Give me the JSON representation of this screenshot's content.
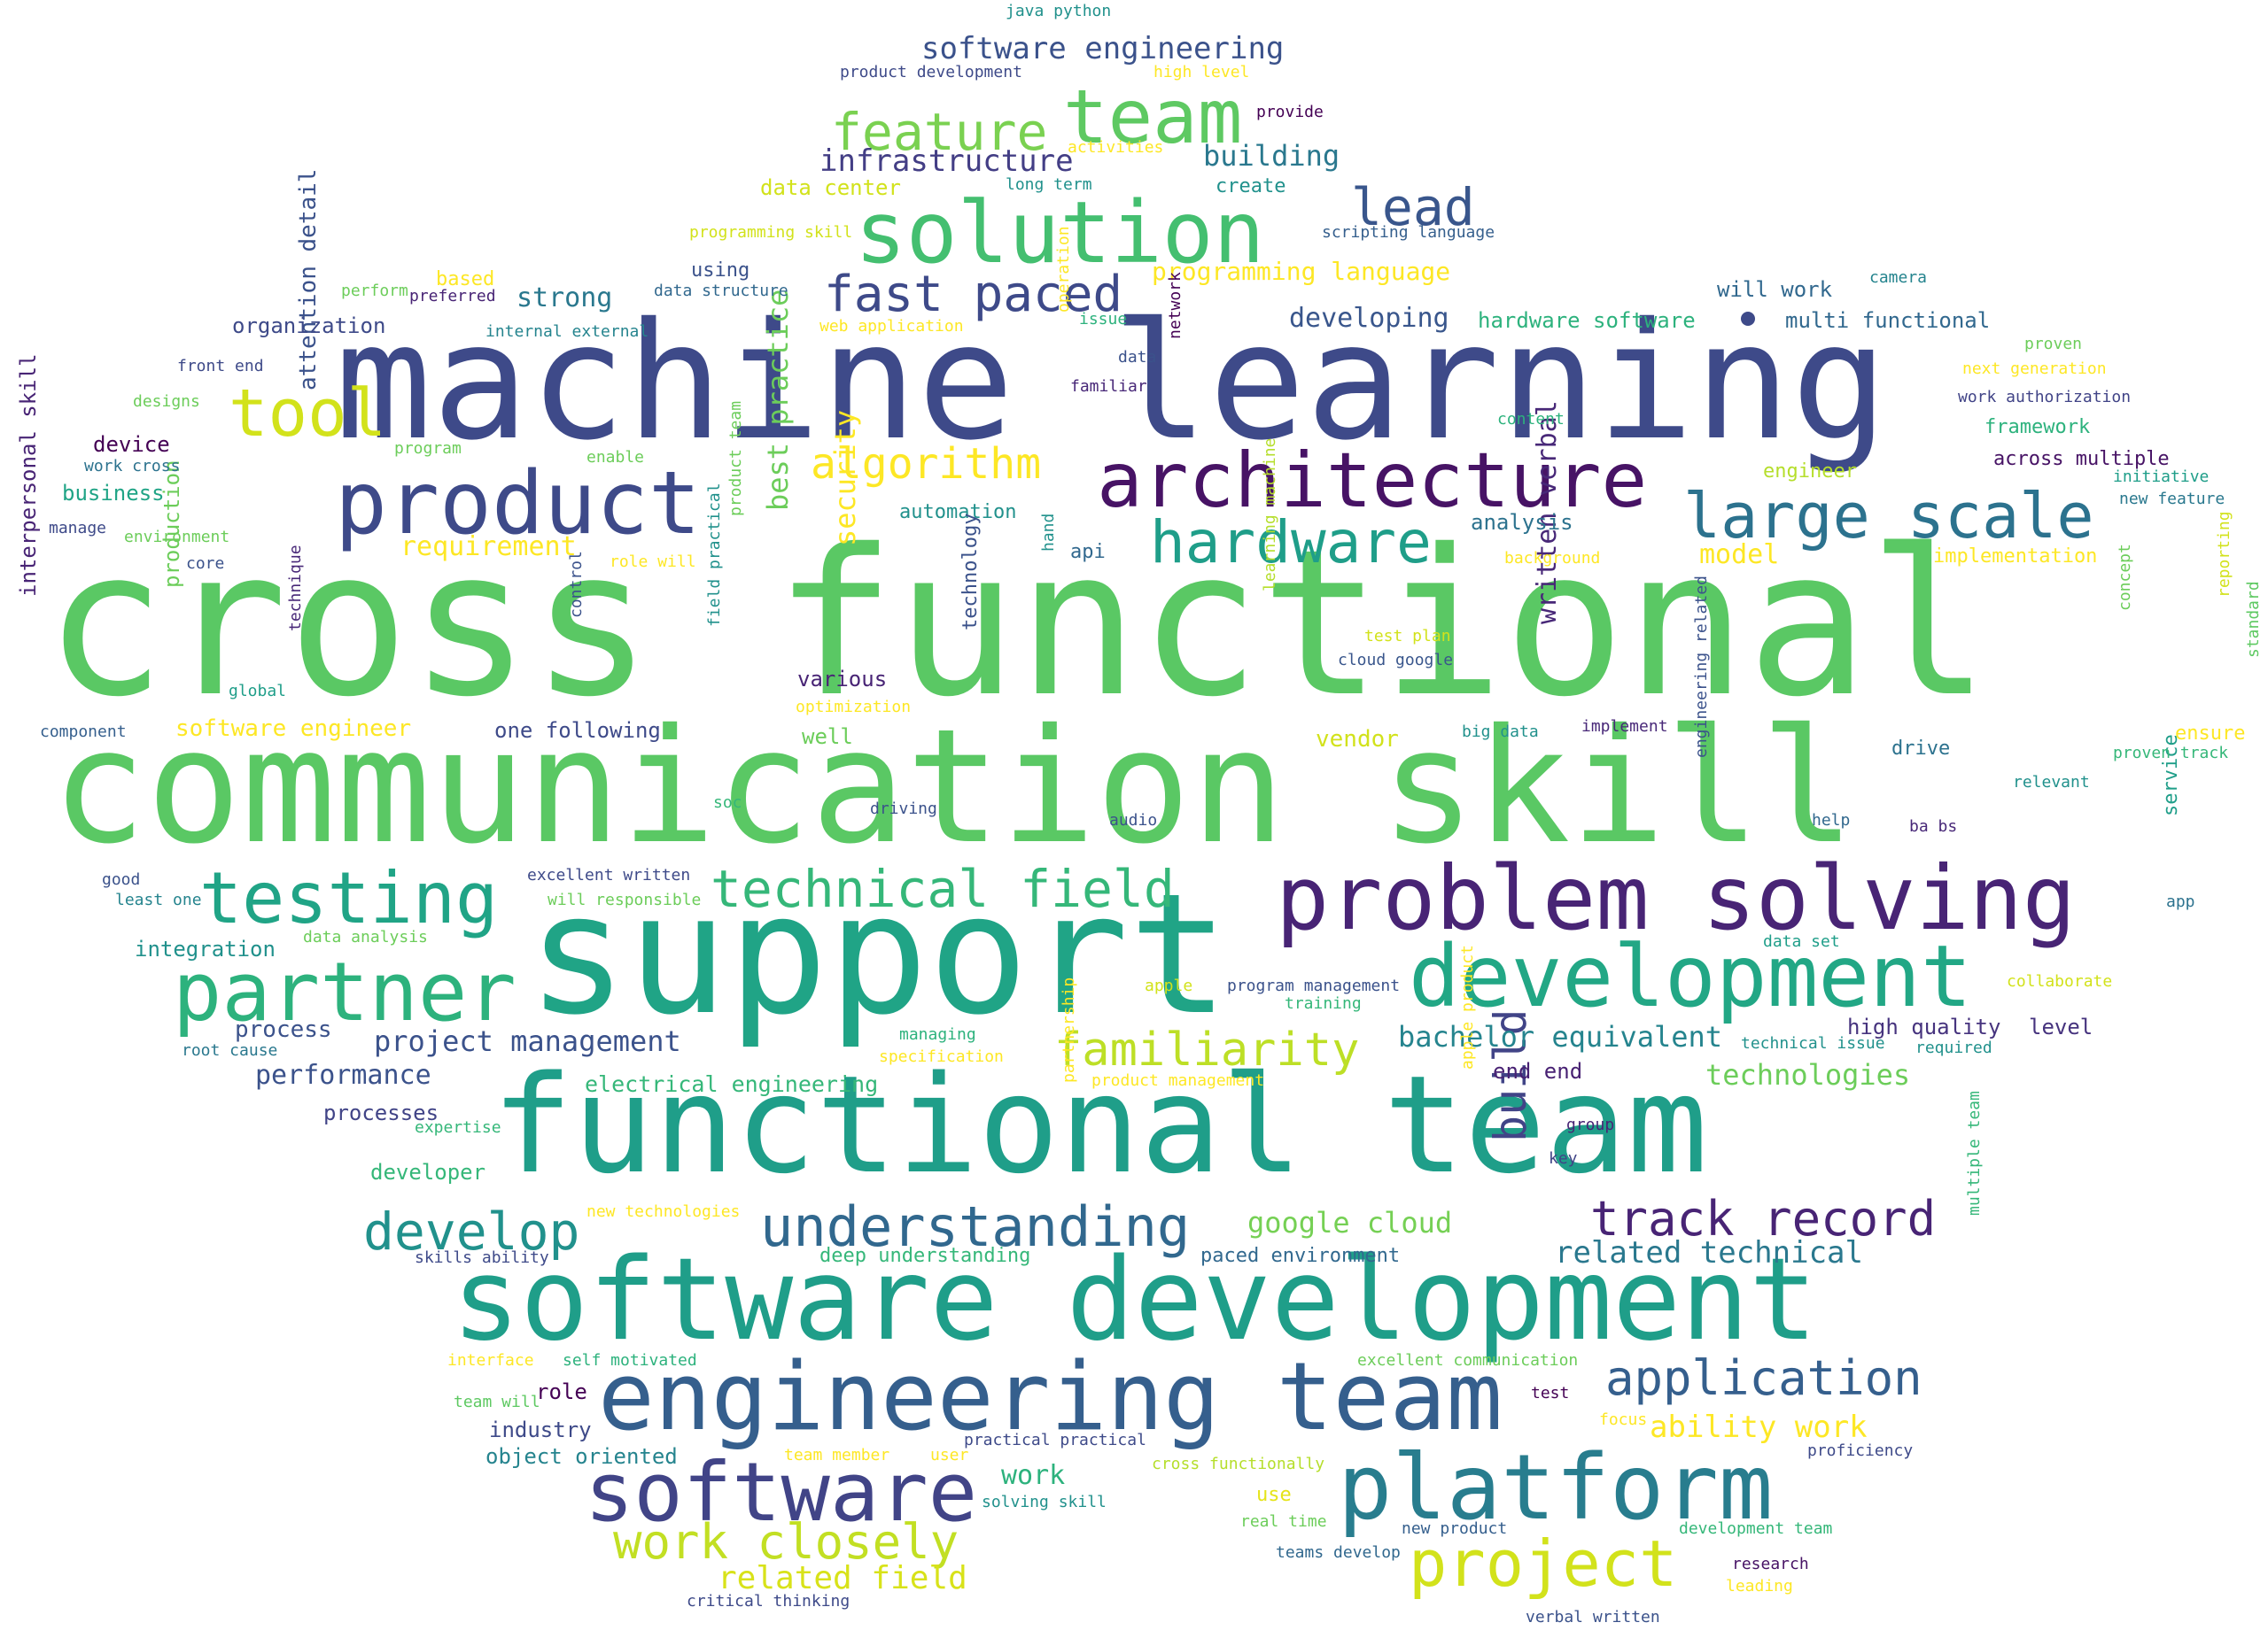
{
  "words": [
    {
      "text": "cross functional",
      "color": "#5ac864"
    },
    {
      "text": "communication skill",
      "color": "#5ac864"
    },
    {
      "text": "machine learning",
      "color": "#3e4a89"
    },
    {
      "text": "support",
      "color": "#20a486"
    },
    {
      "text": "functional team",
      "color": "#1f9e89"
    },
    {
      "text": "software development",
      "color": "#1f9e89"
    },
    {
      "text": "engineering team",
      "color": "#355f8d"
    },
    {
      "text": "problem solving",
      "color": "#482475"
    },
    {
      "text": "development",
      "color": "#22a785"
    },
    {
      "text": "solution",
      "color": "#44bf70"
    },
    {
      "text": "architecture",
      "color": "#471365"
    },
    {
      "text": "product",
      "color": "#3e4a89"
    },
    {
      "text": "platform",
      "color": "#287d8e"
    },
    {
      "text": "software",
      "color": "#414487"
    },
    {
      "text": "partner",
      "color": "#2db27d"
    },
    {
      "text": "testing",
      "color": "#20a486"
    },
    {
      "text": "team",
      "color": "#5ec962"
    },
    {
      "text": "project",
      "color": "#d2e21b"
    },
    {
      "text": "large scale",
      "color": "#2c728e"
    },
    {
      "text": "technical field",
      "color": "#35b779"
    },
    {
      "text": "work closely",
      "color": "#c2df23"
    },
    {
      "text": "understanding",
      "color": "#31688e"
    },
    {
      "text": "hardware",
      "color": "#1f9e89"
    },
    {
      "text": "feature",
      "color": "#7ad151"
    },
    {
      "text": "fast paced",
      "color": "#3e4a89"
    },
    {
      "text": "application",
      "color": "#355f8d"
    },
    {
      "text": "familiarity",
      "color": "#bddf26"
    },
    {
      "text": "track record",
      "color": "#482475"
    },
    {
      "text": "algorithm",
      "color": "#fde725"
    },
    {
      "text": "tool",
      "color": "#d2e21b"
    },
    {
      "text": "lead",
      "color": "#39568c"
    },
    {
      "text": "develop",
      "color": "#21918c"
    },
    {
      "text": "build",
      "color": "#414487"
    },
    {
      "text": "software engineering",
      "color": "#3b528b"
    },
    {
      "text": "infrastructure",
      "color": "#433e85"
    },
    {
      "text": "building",
      "color": "#2a788e"
    },
    {
      "text": "related field",
      "color": "#d8e219"
    },
    {
      "text": "ability work",
      "color": "#fde725"
    },
    {
      "text": "bachelor equivalent",
      "color": "#25848e"
    },
    {
      "text": "related technical",
      "color": "#2a788e"
    },
    {
      "text": "project management",
      "color": "#3b528b"
    },
    {
      "text": "google cloud",
      "color": "#75d054"
    },
    {
      "text": "technologies",
      "color": "#6ccd5a"
    },
    {
      "text": "best practice",
      "color": "#6ccd5a"
    },
    {
      "text": "security",
      "color": "#fde725"
    },
    {
      "text": "written verbal",
      "color": "#482878"
    },
    {
      "text": "performance",
      "color": "#3b528b"
    },
    {
      "text": "programming language",
      "color": "#fde725"
    },
    {
      "text": "developing",
      "color": "#39568c"
    },
    {
      "text": "strong",
      "color": "#2a788e"
    },
    {
      "text": "requirement",
      "color": "#fde725"
    },
    {
      "text": "model",
      "color": "#fde725"
    },
    {
      "text": "work",
      "color": "#2db27d"
    },
    {
      "text": "attention detail",
      "color": "#3b528b"
    },
    {
      "text": "interpersonal skill",
      "color": "#482475"
    },
    {
      "text": "organization",
      "color": "#3e4a89"
    },
    {
      "text": "hardware software",
      "color": "#2db27d"
    },
    {
      "text": "multi functional",
      "color": "#31688e"
    },
    {
      "text": "will work",
      "color": "#31688e"
    },
    {
      "text": "data center",
      "color": "#d2e21b"
    },
    {
      "text": "electrical engineering",
      "color": "#35b779"
    },
    {
      "text": "software engineer",
      "color": "#fde725"
    },
    {
      "text": "one following",
      "color": "#3e4a89"
    },
    {
      "text": "process",
      "color": "#3b528b"
    },
    {
      "text": "processes",
      "color": "#414487"
    },
    {
      "text": "integration",
      "color": "#21918c"
    },
    {
      "text": "business",
      "color": "#20a486"
    },
    {
      "text": "device",
      "color": "#440154"
    },
    {
      "text": "developer",
      "color": "#35b779"
    },
    {
      "text": "object oriented",
      "color": "#25848e"
    },
    {
      "text": "industry",
      "color": "#3e4a89"
    },
    {
      "text": "role",
      "color": "#440154"
    },
    {
      "text": "high quality",
      "color": "#46337e"
    },
    {
      "text": "level",
      "color": "#46337e"
    },
    {
      "text": "end end",
      "color": "#482173"
    },
    {
      "text": "vendor",
      "color": "#d2e21b"
    },
    {
      "text": "various",
      "color": "#482475"
    },
    {
      "text": "well",
      "color": "#6ccd5a"
    },
    {
      "text": "production",
      "color": "#6ccd5a"
    },
    {
      "text": "analysis",
      "color": "#2c728e"
    },
    {
      "text": "automation",
      "color": "#21918c"
    },
    {
      "text": "api",
      "color": "#31688e"
    },
    {
      "text": "implementation",
      "color": "#fde725"
    },
    {
      "text": "framework",
      "color": "#2db27d"
    },
    {
      "text": "across multiple",
      "color": "#471365"
    },
    {
      "text": "engineer",
      "color": "#b5de2b"
    },
    {
      "text": "ensure",
      "color": "#fde725"
    },
    {
      "text": "drive",
      "color": "#2c728e"
    },
    {
      "text": "service",
      "color": "#1f9e89"
    },
    {
      "text": "technology",
      "color": "#3b528b"
    },
    {
      "text": "deep understanding",
      "color": "#35b779"
    },
    {
      "text": "paced environment",
      "color": "#31688e"
    },
    {
      "text": "use",
      "color": "#e5e419"
    },
    {
      "text": "using",
      "color": "#3b528b"
    },
    {
      "text": "based",
      "color": "#fde725"
    },
    {
      "text": "create",
      "color": "#21918c"
    },
    {
      "text": "java python",
      "color": "#21918c"
    },
    {
      "text": "product development",
      "color": "#3e4a89"
    },
    {
      "text": "high level",
      "color": "#fde725"
    },
    {
      "text": "provide",
      "color": "#440154"
    },
    {
      "text": "activities",
      "color": "#fde725"
    },
    {
      "text": "long term",
      "color": "#21918c"
    },
    {
      "text": "programming skill",
      "color": "#d2e21b"
    },
    {
      "text": "scripting language",
      "color": "#355f8d"
    },
    {
      "text": "data structure",
      "color": "#31688e"
    },
    {
      "text": "perform",
      "color": "#6ccd5a"
    },
    {
      "text": "preferred",
      "color": "#482475"
    },
    {
      "text": "internal external",
      "color": "#25848e"
    },
    {
      "text": "web application",
      "color": "#fde725"
    },
    {
      "text": "issue",
      "color": "#2db27d"
    },
    {
      "text": "operation",
      "color": "#fde725"
    },
    {
      "text": "network",
      "color": "#440154"
    },
    {
      "text": "data",
      "color": "#3b528b"
    },
    {
      "text": "familiar",
      "color": "#482878"
    },
    {
      "text": "camera",
      "color": "#25848e"
    },
    {
      "text": "proven",
      "color": "#6ccd5a"
    },
    {
      "text": "next generation",
      "color": "#fde725"
    },
    {
      "text": "work authorization",
      "color": "#414487"
    },
    {
      "text": "content",
      "color": "#2db27d"
    },
    {
      "text": "front end",
      "color": "#3e4a89"
    },
    {
      "text": "designs",
      "color": "#6ccd5a"
    },
    {
      "text": "program",
      "color": "#6ccd5a"
    },
    {
      "text": "enable",
      "color": "#6ccd5a"
    },
    {
      "text": "work cross",
      "color": "#2c728e"
    },
    {
      "text": "manage",
      "color": "#3e4a89"
    },
    {
      "text": "environment",
      "color": "#6ccd5a"
    },
    {
      "text": "core",
      "color": "#3b528b"
    },
    {
      "text": "initiative",
      "color": "#1f9e89"
    },
    {
      "text": "new feature",
      "color": "#2a788e"
    },
    {
      "text": "product team",
      "color": "#6ccd5a"
    },
    {
      "text": "role will",
      "color": "#fde725"
    },
    {
      "text": "hand",
      "color": "#21918c"
    },
    {
      "text": "background",
      "color": "#fde725"
    },
    {
      "text": "learning machine",
      "color": "#b5de2b"
    },
    {
      "text": "control",
      "color": "#3b528b"
    },
    {
      "text": "technique",
      "color": "#482878"
    },
    {
      "text": "global",
      "color": "#1f9e89"
    },
    {
      "text": "field practical",
      "color": "#21918c"
    },
    {
      "text": "test plan",
      "color": "#d2e21b"
    },
    {
      "text": "cloud google",
      "color": "#39568c"
    },
    {
      "text": "concept",
      "color": "#6ccd5a"
    },
    {
      "text": "reporting",
      "color": "#d2e21b"
    },
    {
      "text": "standard",
      "color": "#5ec962"
    },
    {
      "text": "component",
      "color": "#355f8d"
    },
    {
      "text": "optimization",
      "color": "#fde725"
    },
    {
      "text": "big data",
      "color": "#21918c"
    },
    {
      "text": "implement",
      "color": "#482878"
    },
    {
      "text": "proven track",
      "color": "#35b779"
    },
    {
      "text": "engineering related",
      "color": "#3b528b"
    },
    {
      "text": "relevant",
      "color": "#21918c"
    },
    {
      "text": "soc",
      "color": "#35b779"
    },
    {
      "text": "driving",
      "color": "#3b528b"
    },
    {
      "text": "audio",
      "color": "#3b528b"
    },
    {
      "text": "help",
      "color": "#31688e"
    },
    {
      "text": "ba bs",
      "color": "#482878"
    },
    {
      "text": "good",
      "color": "#3b528b"
    },
    {
      "text": "excellent written",
      "color": "#3e4a89"
    },
    {
      "text": "least one",
      "color": "#25848e"
    },
    {
      "text": "will responsible",
      "color": "#6ccd5a"
    },
    {
      "text": "app",
      "color": "#2c728e"
    },
    {
      "text": "data analysis",
      "color": "#6ccd5a"
    },
    {
      "text": "data set",
      "color": "#1f9e89"
    },
    {
      "text": "apple",
      "color": "#d2e21b"
    },
    {
      "text": "program management",
      "color": "#3b528b"
    },
    {
      "text": "training",
      "color": "#35b779"
    },
    {
      "text": "collaborate",
      "color": "#d2e21b"
    },
    {
      "text": "root cause",
      "color": "#2a788e"
    },
    {
      "text": "managing",
      "color": "#2db27d"
    },
    {
      "text": "specification",
      "color": "#fde725"
    },
    {
      "text": "technical issue",
      "color": "#21918c"
    },
    {
      "text": "required",
      "color": "#21918c"
    },
    {
      "text": "partnership",
      "color": "#fde725"
    },
    {
      "text": "product management",
      "color": "#fde725"
    },
    {
      "text": "apple product",
      "color": "#fde725"
    },
    {
      "text": "expertise",
      "color": "#35b779"
    },
    {
      "text": "group",
      "color": "#482475"
    },
    {
      "text": "key",
      "color": "#414487"
    },
    {
      "text": "new technologies",
      "color": "#fde725"
    },
    {
      "text": "skills ability",
      "color": "#3e4a89"
    },
    {
      "text": "multiple team",
      "color": "#35b779"
    },
    {
      "text": "interface",
      "color": "#fde725"
    },
    {
      "text": "self motivated",
      "color": "#2db27d"
    },
    {
      "text": "excellent communication",
      "color": "#6ccd5a"
    },
    {
      "text": "team will",
      "color": "#5ec962"
    },
    {
      "text": "test",
      "color": "#440154"
    },
    {
      "text": "focus",
      "color": "#fde725"
    },
    {
      "text": "team member",
      "color": "#fde725"
    },
    {
      "text": "user",
      "color": "#fde725"
    },
    {
      "text": "practical practical",
      "color": "#3e4a89"
    },
    {
      "text": "proficiency",
      "color": "#3e4a89"
    },
    {
      "text": "cross functionally",
      "color": "#b5de2b"
    },
    {
      "text": "solving skill",
      "color": "#21918c"
    },
    {
      "text": "real time",
      "color": "#6ccd5a"
    },
    {
      "text": "new product",
      "color": "#355f8d"
    },
    {
      "text": "development team",
      "color": "#35b779"
    },
    {
      "text": "teams develop",
      "color": "#31688e"
    },
    {
      "text": "research",
      "color": "#471365"
    },
    {
      "text": "leading",
      "color": "#fde725"
    },
    {
      "text": "critical thinking",
      "color": "#3e4a89"
    },
    {
      "text": "verbal written",
      "color": "#3b528b"
    }
  ]
}
